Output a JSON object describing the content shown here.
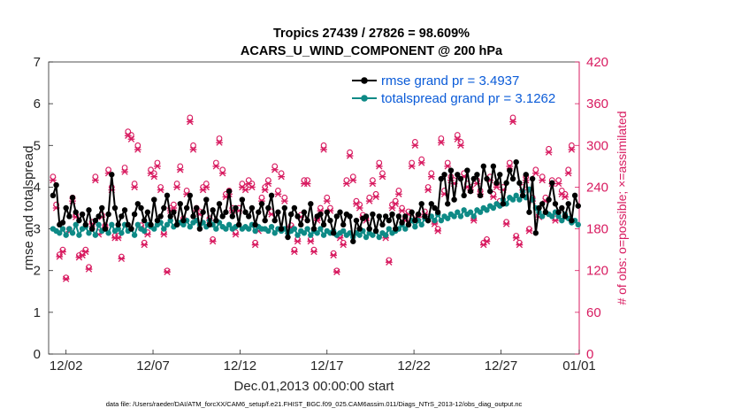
{
  "chart_data": {
    "type": "line",
    "title_line1": "Tropics 27439 / 27826 = 98.609%",
    "title_line2": "ACARS_U_WIND_COMPONENT @ 200 hPa",
    "xlabel": "Dec.01,2013 00:00:00 start",
    "ylabel": "rmse and totalspread",
    "y2label": "# of obs: o=possible; ×=assimilated",
    "footnote": "data file: /Users/raeder/DAI/ATM_forcXX/CAM6_setup/f.e21.FHIST_BGC.f09_025.CAM6assim.011/Diags_NTrS_2013-12/obs_diag_output.nc",
    "x_range_days": [
      0.5,
      31
    ],
    "ylim": [
      0,
      7
    ],
    "y2lim": [
      0,
      420
    ],
    "y_ticks": [
      "0",
      "1",
      "2",
      "3",
      "4",
      "5",
      "6",
      "7"
    ],
    "y2_ticks": [
      "0",
      "60",
      "120",
      "180",
      "240",
      "300",
      "360",
      "420"
    ],
    "x_ticks": [
      {
        "day": 1.5,
        "label": "12/02"
      },
      {
        "day": 6.5,
        "label": "12/07"
      },
      {
        "day": 11.5,
        "label": "12/12"
      },
      {
        "day": 16.5,
        "label": "12/17"
      },
      {
        "day": 21.5,
        "label": "12/22"
      },
      {
        "day": 26.5,
        "label": "12/27"
      },
      {
        "day": 31.0,
        "label": "01/01"
      }
    ],
    "series": [
      {
        "name": "rmse",
        "legend": "rmse grand pr = 3.4937",
        "color": "#000000",
        "axis": "left",
        "values": [
          3.8,
          4.05,
          3.1,
          3.15,
          3.5,
          3.3,
          3.75,
          3.4,
          3.2,
          3.35,
          3.1,
          3.45,
          3.0,
          3.2,
          3.3,
          3.5,
          3.0,
          3.35,
          4.3,
          3.5,
          3.1,
          3.3,
          3.45,
          3.1,
          3.0,
          3.35,
          3.6,
          3.5,
          3.2,
          3.4,
          3.1,
          3.7,
          3.2,
          3.3,
          3.5,
          3.8,
          3.3,
          3.4,
          3.1,
          3.6,
          3.2,
          3.5,
          3.8,
          3.3,
          3.5,
          3.0,
          3.4,
          3.7,
          3.1,
          3.45,
          3.2,
          3.6,
          3.3,
          3.4,
          3.9,
          3.3,
          3.5,
          3.1,
          3.7,
          3.4,
          3.3,
          3.5,
          3.1,
          3.4,
          3.6,
          3.2,
          3.5,
          3.8,
          3.2,
          3.4,
          3.0,
          3.5,
          2.8,
          3.35,
          3.5,
          3.3,
          3.1,
          3.4,
          3.2,
          3.6,
          3.0,
          3.3,
          3.35,
          3.1,
          3.4,
          3.2,
          2.9,
          3.3,
          3.4,
          3.1,
          3.35,
          3.3,
          2.7,
          3.2,
          3.0,
          3.25,
          3.3,
          3.0,
          3.35,
          2.95,
          3.3,
          3.1,
          3.3,
          3.2,
          3.35,
          3.0,
          3.3,
          3.15,
          3.3,
          3.1,
          3.4,
          3.2,
          3.35,
          3.6,
          3.3,
          3.2,
          3.6,
          3.5,
          3.4,
          4.2,
          4.3,
          3.6,
          4.4,
          3.7,
          4.3,
          4.2,
          3.8,
          4.4,
          3.9,
          4.2,
          4.3,
          3.8,
          4.5,
          4.2,
          3.9,
          4.5,
          4.1,
          4.3,
          3.6,
          4.1,
          4.4,
          4.2,
          4.6,
          4.1,
          3.8,
          4.3,
          3.4,
          4.2,
          2.9,
          3.5,
          3.6,
          3.4,
          3.7,
          4.1,
          3.6,
          3.4,
          3.5,
          3.3,
          3.6,
          3.2,
          3.8,
          3.55
        ]
      },
      {
        "name": "totalspread",
        "legend": "totalspread grand pr = 3.1262",
        "color": "#0e8a86",
        "axis": "left",
        "values": [
          3.0,
          2.95,
          2.9,
          3.0,
          2.85,
          3.0,
          2.9,
          3.1,
          2.85,
          3.0,
          3.05,
          2.9,
          3.0,
          2.85,
          3.1,
          2.95,
          3.0,
          2.9,
          3.1,
          2.95,
          3.0,
          2.9,
          3.1,
          2.95,
          3.0,
          2.85,
          3.1,
          3.0,
          2.95,
          3.1,
          3.05,
          3.0,
          3.1,
          3.15,
          3.0,
          3.1,
          3.2,
          3.05,
          3.1,
          3.15,
          3.1,
          3.2,
          3.05,
          3.15,
          3.2,
          3.1,
          3.15,
          3.05,
          3.2,
          3.1,
          3.0,
          3.15,
          3.05,
          3.0,
          3.1,
          3.0,
          3.05,
          3.1,
          3.0,
          3.05,
          3.0,
          3.1,
          2.95,
          3.05,
          3.0,
          3.0,
          2.95,
          3.05,
          2.9,
          3.0,
          2.95,
          3.0,
          2.9,
          2.95,
          3.0,
          2.85,
          2.95,
          2.9,
          3.0,
          2.85,
          2.95,
          2.9,
          3.0,
          2.85,
          2.95,
          2.9,
          2.95,
          2.85,
          2.9,
          2.95,
          2.85,
          2.9,
          2.8,
          2.9,
          2.85,
          2.95,
          2.8,
          2.9,
          2.85,
          2.95,
          2.8,
          2.9,
          2.85,
          3.0,
          2.9,
          2.95,
          3.0,
          3.1,
          3.0,
          3.1,
          3.2,
          3.05,
          3.2,
          3.1,
          3.25,
          3.2,
          3.3,
          3.2,
          3.35,
          3.2,
          3.3,
          3.25,
          3.35,
          3.3,
          3.4,
          3.3,
          3.45,
          3.35,
          3.4,
          3.3,
          3.45,
          3.4,
          3.5,
          3.45,
          3.55,
          3.5,
          3.6,
          3.55,
          3.7,
          3.6,
          3.75,
          3.7,
          3.8,
          3.7,
          3.9,
          3.75,
          3.95,
          3.7,
          3.5,
          3.4,
          3.3,
          3.4,
          3.35,
          3.3,
          3.4,
          3.3,
          3.2,
          3.35,
          3.25,
          3.15,
          3.2,
          3.1
        ]
      }
    ],
    "obs_counts": [
      {
        "name": "possible",
        "marker": "circle",
        "color": "#d81b60",
        "axis": "right",
        "values": [
          255,
          215,
          143,
          150,
          110,
          180,
          225,
          200,
          142,
          145,
          150,
          125,
          190,
          255,
          175,
          200,
          185,
          265,
          240,
          170,
          170,
          140,
          268,
          320,
          315,
          245,
          300,
          185,
          160,
          175,
          265,
          260,
          275,
          240,
          175,
          120,
          210,
          215,
          245,
          270,
          195,
          235,
          340,
          300,
          210,
          205,
          240,
          245,
          195,
          165,
          275,
          310,
          265,
          230,
          235,
          210,
          175,
          210,
          245,
          240,
          250,
          245,
          160,
          180,
          225,
          240,
          250,
          205,
          270,
          235,
          260,
          225,
          180,
          185,
          150,
          165,
          200,
          250,
          250,
          165,
          150,
          195,
          210,
          300,
          225,
          210,
          145,
          120,
          170,
          160,
          250,
          290,
          255,
          220,
          215,
          200,
          195,
          225,
          250,
          230,
          275,
          260,
          170,
          135,
          215,
          220,
          235,
          210,
          195,
          205,
          275,
          305,
          200,
          280,
          205,
          240,
          260,
          190,
          180,
          310,
          235,
          275,
          255,
          250,
          315,
          305,
          260,
          245,
          240,
          195,
          250,
          235,
          160,
          165,
          255,
          230,
          245,
          220,
          240,
          190,
          275,
          340,
          170,
          160,
          240,
          255,
          180,
          225,
          265,
          200,
          255,
          225,
          295,
          250,
          195,
          250,
          235,
          230,
          265,
          300
        ]
      },
      {
        "name": "assimilated",
        "marker": "x",
        "color": "#d81b60",
        "axis": "right",
        "values": [
          250,
          210,
          140,
          147,
          108,
          176,
          220,
          197,
          139,
          142,
          147,
          122,
          187,
          250,
          172,
          197,
          182,
          260,
          236,
          167,
          167,
          137,
          262,
          314,
          309,
          240,
          294,
          182,
          157,
          172,
          260,
          255,
          270,
          236,
          172,
          118,
          206,
          210,
          240,
          265,
          192,
          230,
          334,
          294,
          206,
          201,
          236,
          240,
          192,
          162,
          270,
          304,
          260,
          226,
          230,
          206,
          172,
          206,
          240,
          236,
          245,
          240,
          157,
          177,
          220,
          236,
          245,
          201,
          265,
          230,
          255,
          220,
          177,
          182,
          147,
          162,
          197,
          245,
          245,
          162,
          147,
          192,
          206,
          294,
          220,
          206,
          142,
          118,
          167,
          157,
          245,
          285,
          250,
          216,
          210,
          197,
          192,
          220,
          245,
          226,
          270,
          255,
          167,
          132,
          210,
          216,
          230,
          206,
          192,
          201,
          270,
          300,
          197,
          275,
          201,
          236,
          255,
          187,
          177,
          304,
          230,
          270,
          250,
          245,
          309,
          300,
          255,
          240,
          236,
          192,
          245,
          230,
          157,
          162,
          250,
          226,
          240,
          216,
          236,
          187,
          270,
          334,
          167,
          157,
          236,
          250,
          177,
          220,
          260,
          197,
          250,
          220,
          290,
          245,
          192,
          245,
          230,
          226,
          260,
          294
        ]
      }
    ]
  }
}
